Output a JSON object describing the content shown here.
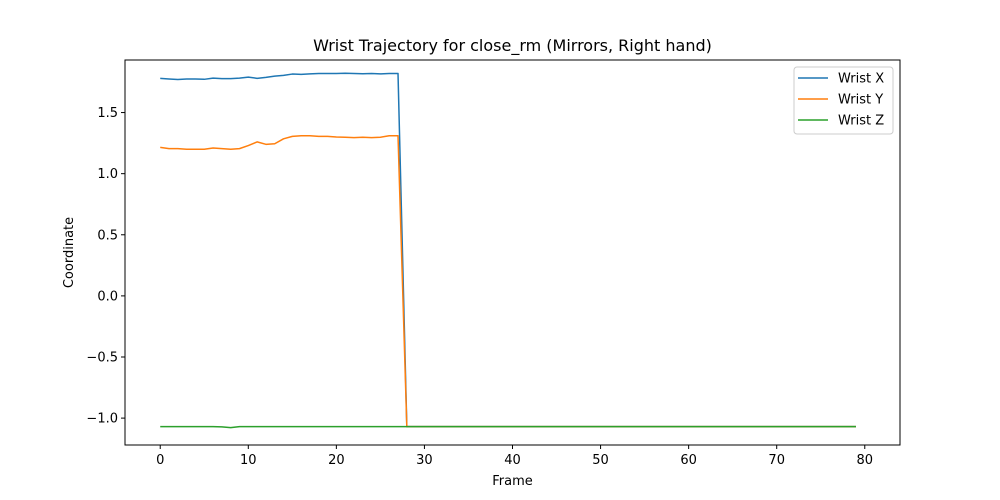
{
  "chart_data": {
    "type": "line",
    "title": "Wrist Trajectory for close_rm (Mirrors, Right hand)",
    "xlabel": "Frame",
    "ylabel": "Coordinate",
    "xlim": [
      -4,
      84
    ],
    "ylim": [
      -1.22,
      1.93
    ],
    "xticks": [
      0,
      10,
      20,
      30,
      40,
      50,
      60,
      70,
      80
    ],
    "xtick_labels": [
      "0",
      "10",
      "20",
      "30",
      "40",
      "50",
      "60",
      "70",
      "80"
    ],
    "yticks": [
      -1.0,
      -0.5,
      0.0,
      0.5,
      1.0,
      1.5
    ],
    "ytick_labels": [
      "−1.0",
      "−0.5",
      "0.0",
      "0.5",
      "1.0",
      "1.5"
    ],
    "grid": false,
    "legend_position": "top-right",
    "x_start": 0,
    "x_end": 79,
    "series": [
      {
        "name": "Wrist X",
        "color": "#1f77b4",
        "values": [
          1.78,
          1.775,
          1.77,
          1.775,
          1.775,
          1.772,
          1.782,
          1.778,
          1.778,
          1.782,
          1.79,
          1.78,
          1.788,
          1.798,
          1.804,
          1.815,
          1.812,
          1.816,
          1.82,
          1.82,
          1.82,
          1.822,
          1.82,
          1.818,
          1.82,
          1.816,
          1.82,
          1.82,
          -1.07,
          -1.07,
          -1.07,
          -1.07,
          -1.07,
          -1.07,
          -1.07,
          -1.07,
          -1.07,
          -1.07,
          -1.07,
          -1.07,
          -1.07,
          -1.07,
          -1.07,
          -1.07,
          -1.07,
          -1.07,
          -1.07,
          -1.07,
          -1.07,
          -1.07,
          -1.07,
          -1.07,
          -1.07,
          -1.07,
          -1.07,
          -1.07,
          -1.07,
          -1.07,
          -1.07,
          -1.07,
          -1.07,
          -1.07,
          -1.07,
          -1.07,
          -1.07,
          -1.07,
          -1.07,
          -1.07,
          -1.07,
          -1.07,
          -1.07,
          -1.07,
          -1.07,
          -1.07,
          -1.07,
          -1.07,
          -1.07,
          -1.07,
          -1.07,
          -1.07
        ]
      },
      {
        "name": "Wrist Y",
        "color": "#ff7f0e",
        "values": [
          1.215,
          1.205,
          1.205,
          1.2,
          1.2,
          1.2,
          1.21,
          1.205,
          1.2,
          1.205,
          1.23,
          1.26,
          1.24,
          1.245,
          1.285,
          1.305,
          1.31,
          1.31,
          1.305,
          1.305,
          1.3,
          1.298,
          1.295,
          1.298,
          1.295,
          1.298,
          1.31,
          1.31,
          -1.07,
          -1.07,
          -1.07,
          -1.07,
          -1.07,
          -1.07,
          -1.07,
          -1.07,
          -1.07,
          -1.07,
          -1.07,
          -1.07,
          -1.07,
          -1.07,
          -1.07,
          -1.07,
          -1.07,
          -1.07,
          -1.07,
          -1.07,
          -1.07,
          -1.07,
          -1.07,
          -1.07,
          -1.07,
          -1.07,
          -1.07,
          -1.07,
          -1.07,
          -1.07,
          -1.07,
          -1.07,
          -1.07,
          -1.07,
          -1.07,
          -1.07,
          -1.07,
          -1.07,
          -1.07,
          -1.07,
          -1.07,
          -1.07,
          -1.07,
          -1.07,
          -1.07,
          -1.07,
          -1.07,
          -1.07,
          -1.07,
          -1.07,
          -1.07,
          -1.07
        ]
      },
      {
        "name": "Wrist Z",
        "color": "#2ca02c",
        "values": [
          -1.07,
          -1.07,
          -1.07,
          -1.07,
          -1.07,
          -1.07,
          -1.07,
          -1.072,
          -1.078,
          -1.07,
          -1.07,
          -1.07,
          -1.07,
          -1.07,
          -1.07,
          -1.07,
          -1.07,
          -1.07,
          -1.07,
          -1.07,
          -1.07,
          -1.07,
          -1.07,
          -1.07,
          -1.07,
          -1.07,
          -1.07,
          -1.07,
          -1.07,
          -1.07,
          -1.07,
          -1.07,
          -1.07,
          -1.07,
          -1.07,
          -1.07,
          -1.07,
          -1.07,
          -1.07,
          -1.07,
          -1.07,
          -1.07,
          -1.07,
          -1.07,
          -1.07,
          -1.07,
          -1.07,
          -1.07,
          -1.07,
          -1.07,
          -1.07,
          -1.07,
          -1.07,
          -1.07,
          -1.07,
          -1.07,
          -1.07,
          -1.07,
          -1.07,
          -1.07,
          -1.07,
          -1.07,
          -1.07,
          -1.07,
          -1.07,
          -1.07,
          -1.07,
          -1.07,
          -1.07,
          -1.07,
          -1.07,
          -1.07,
          -1.07,
          -1.07,
          -1.07,
          -1.07,
          -1.07,
          -1.07,
          -1.07,
          -1.07
        ]
      }
    ]
  }
}
